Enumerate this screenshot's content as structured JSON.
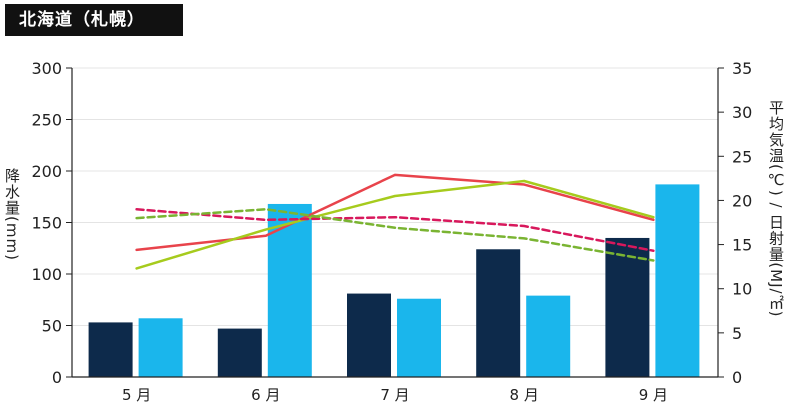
{
  "header": {
    "title": "北海道（札幌）"
  },
  "chart_data": {
    "type": "bar+line",
    "categories": [
      "5 月",
      "6 月",
      "7 月",
      "8 月",
      "9 月"
    ],
    "y_left": {
      "label": "降水量(mm)",
      "range": [
        0,
        300
      ],
      "ticks": [
        "0",
        "50",
        "100",
        "150",
        "200",
        "250",
        "300"
      ]
    },
    "y_right": {
      "label": "平均気温(℃) / 日射量(MJ/㎡)",
      "range": [
        0,
        35
      ],
      "ticks": [
        "0",
        "5",
        "10",
        "15",
        "20",
        "25",
        "30",
        "35"
      ]
    },
    "bar_series": [
      {
        "axis": "left",
        "color": "#0d2a4b",
        "values": [
          53,
          47,
          81,
          124,
          135
        ]
      },
      {
        "axis": "left",
        "color": "#1ab6ec",
        "values": [
          57,
          168,
          76,
          79,
          187
        ]
      }
    ],
    "line_series": [
      {
        "axis": "right",
        "color": "#e8434b",
        "dash": false,
        "values": [
          14.4,
          16.0,
          22.9,
          21.8,
          17.8
        ]
      },
      {
        "axis": "right",
        "color": "#a6cb1d",
        "dash": false,
        "values": [
          12.3,
          16.7,
          20.5,
          22.2,
          18.1
        ]
      },
      {
        "axis": "right",
        "color": "#d8185c",
        "dash": true,
        "values": [
          19.0,
          17.8,
          18.1,
          17.1,
          14.3
        ]
      },
      {
        "axis": "right",
        "color": "#7ab432",
        "dash": true,
        "values": [
          18.0,
          19.0,
          16.9,
          15.7,
          13.2
        ]
      }
    ],
    "grid": true,
    "legend": "none"
  }
}
